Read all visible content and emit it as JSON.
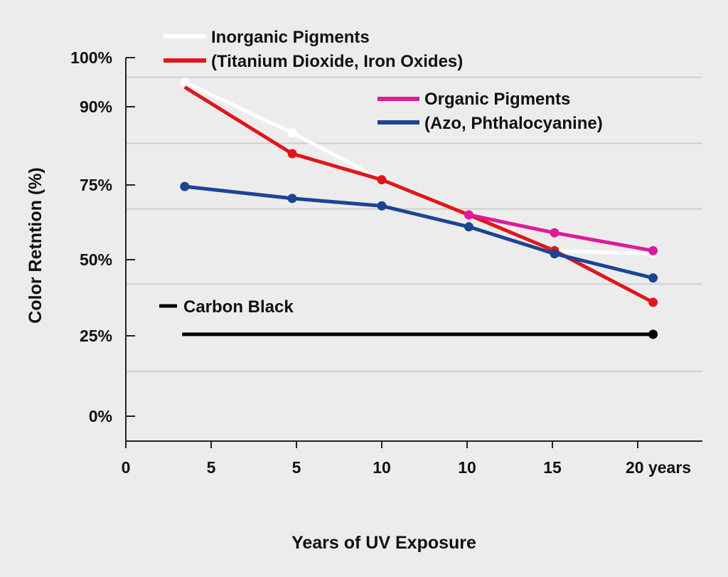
{
  "chart_data": {
    "type": "line",
    "title": "",
    "xlabel": "Years of UV Exposure",
    "ylabel": "Color Retntion (%)",
    "x_tick_labels": [
      "0",
      "5",
      "5",
      "10",
      "10",
      "15",
      "20 years"
    ],
    "y_ticks": [
      {
        "value": 100,
        "label": "100%"
      },
      {
        "value": 90,
        "label": "90%",
        "color": "#7a7a7a"
      },
      {
        "value": 75,
        "label": "75%"
      },
      {
        "value": 50,
        "label": "50%"
      },
      {
        "value": 25,
        "label": "25%"
      },
      {
        "value": 0,
        "label": "0%"
      }
    ],
    "xlim": [
      0,
      20
    ],
    "ylim": [
      0,
      100
    ],
    "grid": true,
    "gridlines": [
      96,
      83,
      67,
      42,
      14
    ],
    "legend": [
      {
        "label": "Inorganic Pigments",
        "color": "#ffffff",
        "placement": "top-left"
      },
      {
        "label": "(Titanium Dioxide, Iron Oxides)",
        "color": "#e0161b",
        "placement": "top-left"
      },
      {
        "label": "Organic Pigments",
        "color": "#de1a9c",
        "placement": "top-right"
      },
      {
        "label": "(Azo, Phthalocyanine)",
        "color": "#1c4494",
        "placement": "top-right"
      },
      {
        "label": "Carbon Black",
        "color": "#000000",
        "placement": "left"
      }
    ],
    "series": [
      {
        "name": "Inorganic Pigments",
        "color": "#ffffff",
        "x": [
          2.3,
          6.5,
          10,
          13.4,
          16.75,
          20.6
        ],
        "y": [
          95,
          85,
          76,
          65,
          53,
          52
        ],
        "markers": [
          0,
          1,
          5
        ]
      },
      {
        "name": "(Titanium Dioxide, Iron Oxides)",
        "color": "#e0161b",
        "x": [
          2.3,
          6.5,
          10,
          13.4,
          16.75,
          20.6
        ],
        "y": [
          94,
          81,
          76,
          65,
          53,
          36
        ],
        "markers": [
          1,
          2,
          4,
          5
        ]
      },
      {
        "name": "Organic Pigments",
        "color": "#de1a9c",
        "x": [
          13.4,
          16.75,
          20.6
        ],
        "y": [
          65,
          59,
          53
        ],
        "markers": [
          0,
          1,
          2
        ]
      },
      {
        "name": "(Azo, Phthalocyanine)",
        "color": "#1c4494",
        "x": [
          2.3,
          6.5,
          10,
          13.4,
          16.75,
          20.6
        ],
        "y": [
          74.5,
          70.5,
          68,
          61,
          52,
          44
        ],
        "markers": [
          0,
          1,
          2,
          3,
          4,
          5
        ]
      },
      {
        "name": "Carbon Black",
        "color": "#000000",
        "x": [
          2.2,
          20.6
        ],
        "y": [
          25.5,
          25.5
        ],
        "markers": [
          1
        ]
      }
    ]
  }
}
